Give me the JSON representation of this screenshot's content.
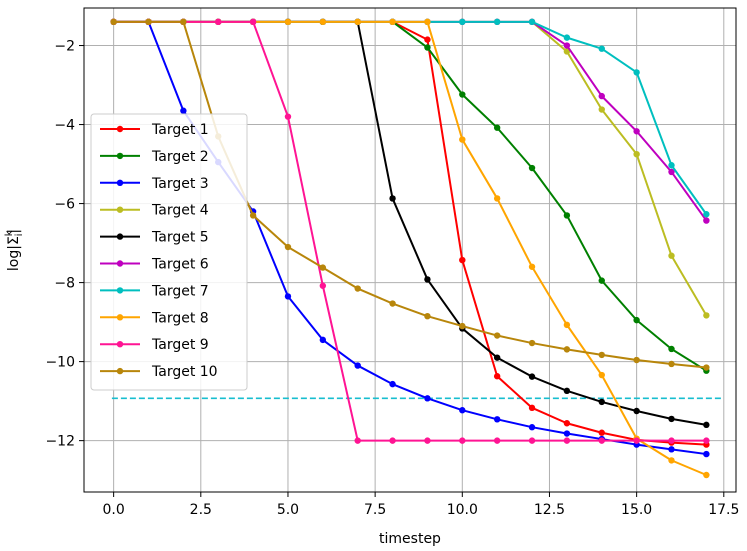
{
  "chart_data": {
    "type": "line",
    "xlabel": "timestep",
    "ylabel": "log|Σ",
    "ylabel_sup": "k",
    "ylabel_sub": "i",
    "ylabel_end": "|",
    "xlim": [
      -0.85,
      17.85
    ],
    "ylim": [
      -13.3,
      -1.05
    ],
    "xticks": [
      0.0,
      2.5,
      5.0,
      7.5,
      10.0,
      12.5,
      15.0,
      17.5
    ],
    "xtick_labels": [
      "0.0",
      "2.5",
      "5.0",
      "7.5",
      "10.0",
      "12.5",
      "15.0",
      "17.5"
    ],
    "yticks": [
      -2,
      -4,
      -6,
      -8,
      -10,
      -12
    ],
    "ytick_labels": [
      "−2",
      "−4",
      "−6",
      "−8",
      "−10",
      "−12"
    ],
    "grid": true,
    "legend_position": "center-left",
    "reference_line": {
      "y": -10.93,
      "x": [
        -0.05,
        17.45
      ],
      "color": "#17becf",
      "style": "dashed"
    },
    "series": [
      {
        "name": "Target 1",
        "color": "#ff0000",
        "x": [
          0,
          1,
          2,
          3,
          4,
          5,
          6,
          7,
          8,
          9,
          10,
          11,
          12,
          13,
          14,
          15,
          16,
          17
        ],
        "y": [
          -1.4,
          -1.4,
          -1.4,
          -1.4,
          -1.4,
          -1.4,
          -1.4,
          -1.4,
          -1.4,
          -1.85,
          -7.43,
          -10.37,
          -11.17,
          -11.56,
          -11.8,
          -11.98,
          -12.05,
          -12.1
        ]
      },
      {
        "name": "Target 2",
        "color": "#008000",
        "x": [
          0,
          1,
          2,
          3,
          4,
          5,
          6,
          7,
          8,
          9,
          10,
          11,
          12,
          13,
          14,
          15,
          16,
          17
        ],
        "y": [
          -1.4,
          -1.4,
          -1.4,
          -1.4,
          -1.4,
          -1.4,
          -1.4,
          -1.4,
          -1.4,
          -2.05,
          -3.24,
          -4.08,
          -5.1,
          -6.3,
          -7.95,
          -8.95,
          -9.68,
          -10.23
        ]
      },
      {
        "name": "Target 3",
        "color": "#0000ff",
        "x": [
          0,
          1,
          2,
          3,
          4,
          5,
          6,
          7,
          8,
          9,
          10,
          11,
          12,
          13,
          14,
          15,
          16,
          17
        ],
        "y": [
          -1.4,
          -1.4,
          -3.65,
          -4.95,
          -6.2,
          -8.35,
          -9.45,
          -10.1,
          -10.57,
          -10.93,
          -11.23,
          -11.46,
          -11.66,
          -11.82,
          -11.96,
          -12.1,
          -12.22,
          -12.34
        ]
      },
      {
        "name": "Target 4",
        "color": "#bcbd22",
        "x": [
          0,
          1,
          2,
          3,
          4,
          5,
          6,
          7,
          8,
          9,
          10,
          11,
          12,
          13,
          14,
          15,
          16,
          17
        ],
        "y": [
          -1.4,
          -1.4,
          -1.4,
          -1.4,
          -1.4,
          -1.4,
          -1.4,
          -1.4,
          -1.4,
          -1.4,
          -1.4,
          -1.4,
          -1.4,
          -2.15,
          -3.62,
          -4.75,
          -7.32,
          -8.83
        ]
      },
      {
        "name": "Target 5",
        "color": "#000000",
        "x": [
          0,
          1,
          2,
          3,
          4,
          5,
          6,
          7,
          8,
          9,
          10,
          11,
          12,
          13,
          14,
          15,
          16,
          17
        ],
        "y": [
          -1.4,
          -1.4,
          -1.4,
          -1.4,
          -1.4,
          -1.4,
          -1.4,
          -1.4,
          -5.87,
          -7.92,
          -9.16,
          -9.9,
          -10.38,
          -10.74,
          -11.02,
          -11.25,
          -11.45,
          -11.6
        ]
      },
      {
        "name": "Target 6",
        "color": "#bf00bf",
        "x": [
          0,
          1,
          2,
          3,
          4,
          5,
          6,
          7,
          8,
          9,
          10,
          11,
          12,
          13,
          14,
          15,
          16,
          17
        ],
        "y": [
          -1.4,
          -1.4,
          -1.4,
          -1.4,
          -1.4,
          -1.4,
          -1.4,
          -1.4,
          -1.4,
          -1.4,
          -1.4,
          -1.4,
          -1.4,
          -2.0,
          -3.28,
          -4.17,
          -5.2,
          -6.43
        ]
      },
      {
        "name": "Target 7",
        "color": "#00bfbf",
        "x": [
          0,
          1,
          2,
          3,
          4,
          5,
          6,
          7,
          8,
          9,
          10,
          11,
          12,
          13,
          14,
          15,
          16,
          17
        ],
        "y": [
          -1.4,
          -1.4,
          -1.4,
          -1.4,
          -1.4,
          -1.4,
          -1.4,
          -1.4,
          -1.4,
          -1.4,
          -1.4,
          -1.4,
          -1.4,
          -1.8,
          -2.08,
          -2.68,
          -5.03,
          -6.27
        ]
      },
      {
        "name": "Target 8",
        "color": "#ffa500",
        "x": [
          0,
          1,
          2,
          3,
          4,
          5,
          6,
          7,
          8,
          9,
          10,
          11,
          12,
          13,
          14,
          15,
          16,
          17
        ],
        "y": [
          -1.4,
          -1.4,
          -1.4,
          -1.4,
          -1.4,
          -1.4,
          -1.4,
          -1.4,
          -1.4,
          -1.4,
          -4.38,
          -5.87,
          -7.6,
          -9.07,
          -10.34,
          -11.95,
          -12.5,
          -12.87
        ]
      },
      {
        "name": "Target 9",
        "color": "#ff1493",
        "x": [
          0,
          1,
          2,
          3,
          4,
          5,
          6,
          7,
          8,
          9,
          10,
          11,
          12,
          13,
          14,
          15,
          16,
          17
        ],
        "y": [
          -1.4,
          -1.4,
          -1.4,
          -1.4,
          -1.4,
          -3.8,
          -8.08,
          -12.0,
          -12.0,
          -12.0,
          -12.0,
          -12.0,
          -12.0,
          -12.0,
          -12.0,
          -12.0,
          -12.0,
          -12.0
        ]
      },
      {
        "name": "Target 10",
        "color": "#b8860b",
        "x": [
          0,
          1,
          2,
          3,
          4,
          5,
          6,
          7,
          8,
          9,
          10,
          11,
          12,
          13,
          14,
          15,
          16,
          17
        ],
        "y": [
          -1.4,
          -1.4,
          -1.4,
          -4.3,
          -6.3,
          -7.1,
          -7.62,
          -8.15,
          -8.53,
          -8.85,
          -9.1,
          -9.34,
          -9.53,
          -9.69,
          -9.83,
          -9.96,
          -10.06,
          -10.15
        ]
      }
    ]
  }
}
